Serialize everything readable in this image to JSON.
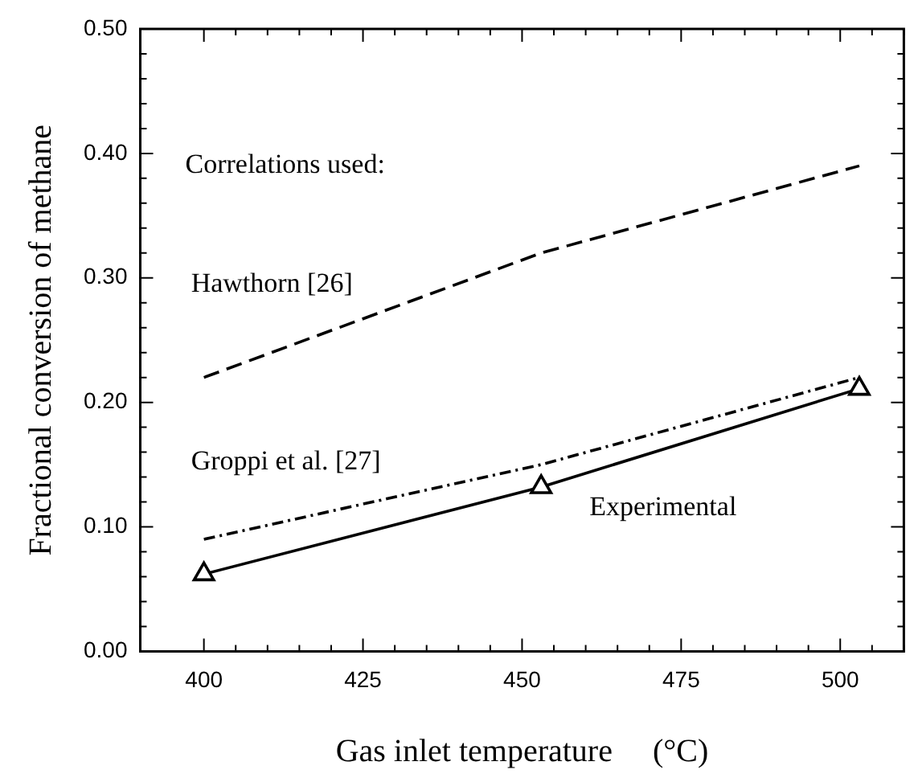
{
  "chart_data": {
    "type": "line",
    "xlabel": "Gas inlet temperature     (°C)",
    "ylabel": "Fractional conversion of methane",
    "xlim": [
      390,
      510
    ],
    "xticks": [
      400,
      425,
      450,
      475,
      500
    ],
    "ylim": [
      0,
      0.5
    ],
    "yticks": [
      {
        "value": 0,
        "label": "0.00"
      },
      {
        "value": 0.1,
        "label": "0.10"
      },
      {
        "value": 0.2,
        "label": "0.20"
      },
      {
        "value": 0.3,
        "label": "0.30"
      },
      {
        "value": 0.4,
        "label": "0.40"
      },
      {
        "value": 0.5,
        "label": "0.50"
      }
    ],
    "grid": false,
    "legend": false,
    "series": [
      {
        "name": "Hawthorn [26]",
        "color": "#000000",
        "x": [
          400,
          453,
          503
        ],
        "values": [
          0.22,
          0.32,
          0.39
        ],
        "line_style": "dashed",
        "marker": "none"
      },
      {
        "name": "Groppi et al. [27]",
        "color": "#000000",
        "x": [
          400,
          453,
          503
        ],
        "values": [
          0.09,
          0.15,
          0.22
        ],
        "line_style": "dotted",
        "marker": "none"
      },
      {
        "name": "Experimental",
        "color": "#000000",
        "x": [
          400,
          453,
          503
        ],
        "values": [
          0.062,
          0.132,
          0.211
        ],
        "line_style": "solid",
        "marker": "triangle"
      }
    ],
    "annotations": [
      "Correlations used:"
    ]
  }
}
